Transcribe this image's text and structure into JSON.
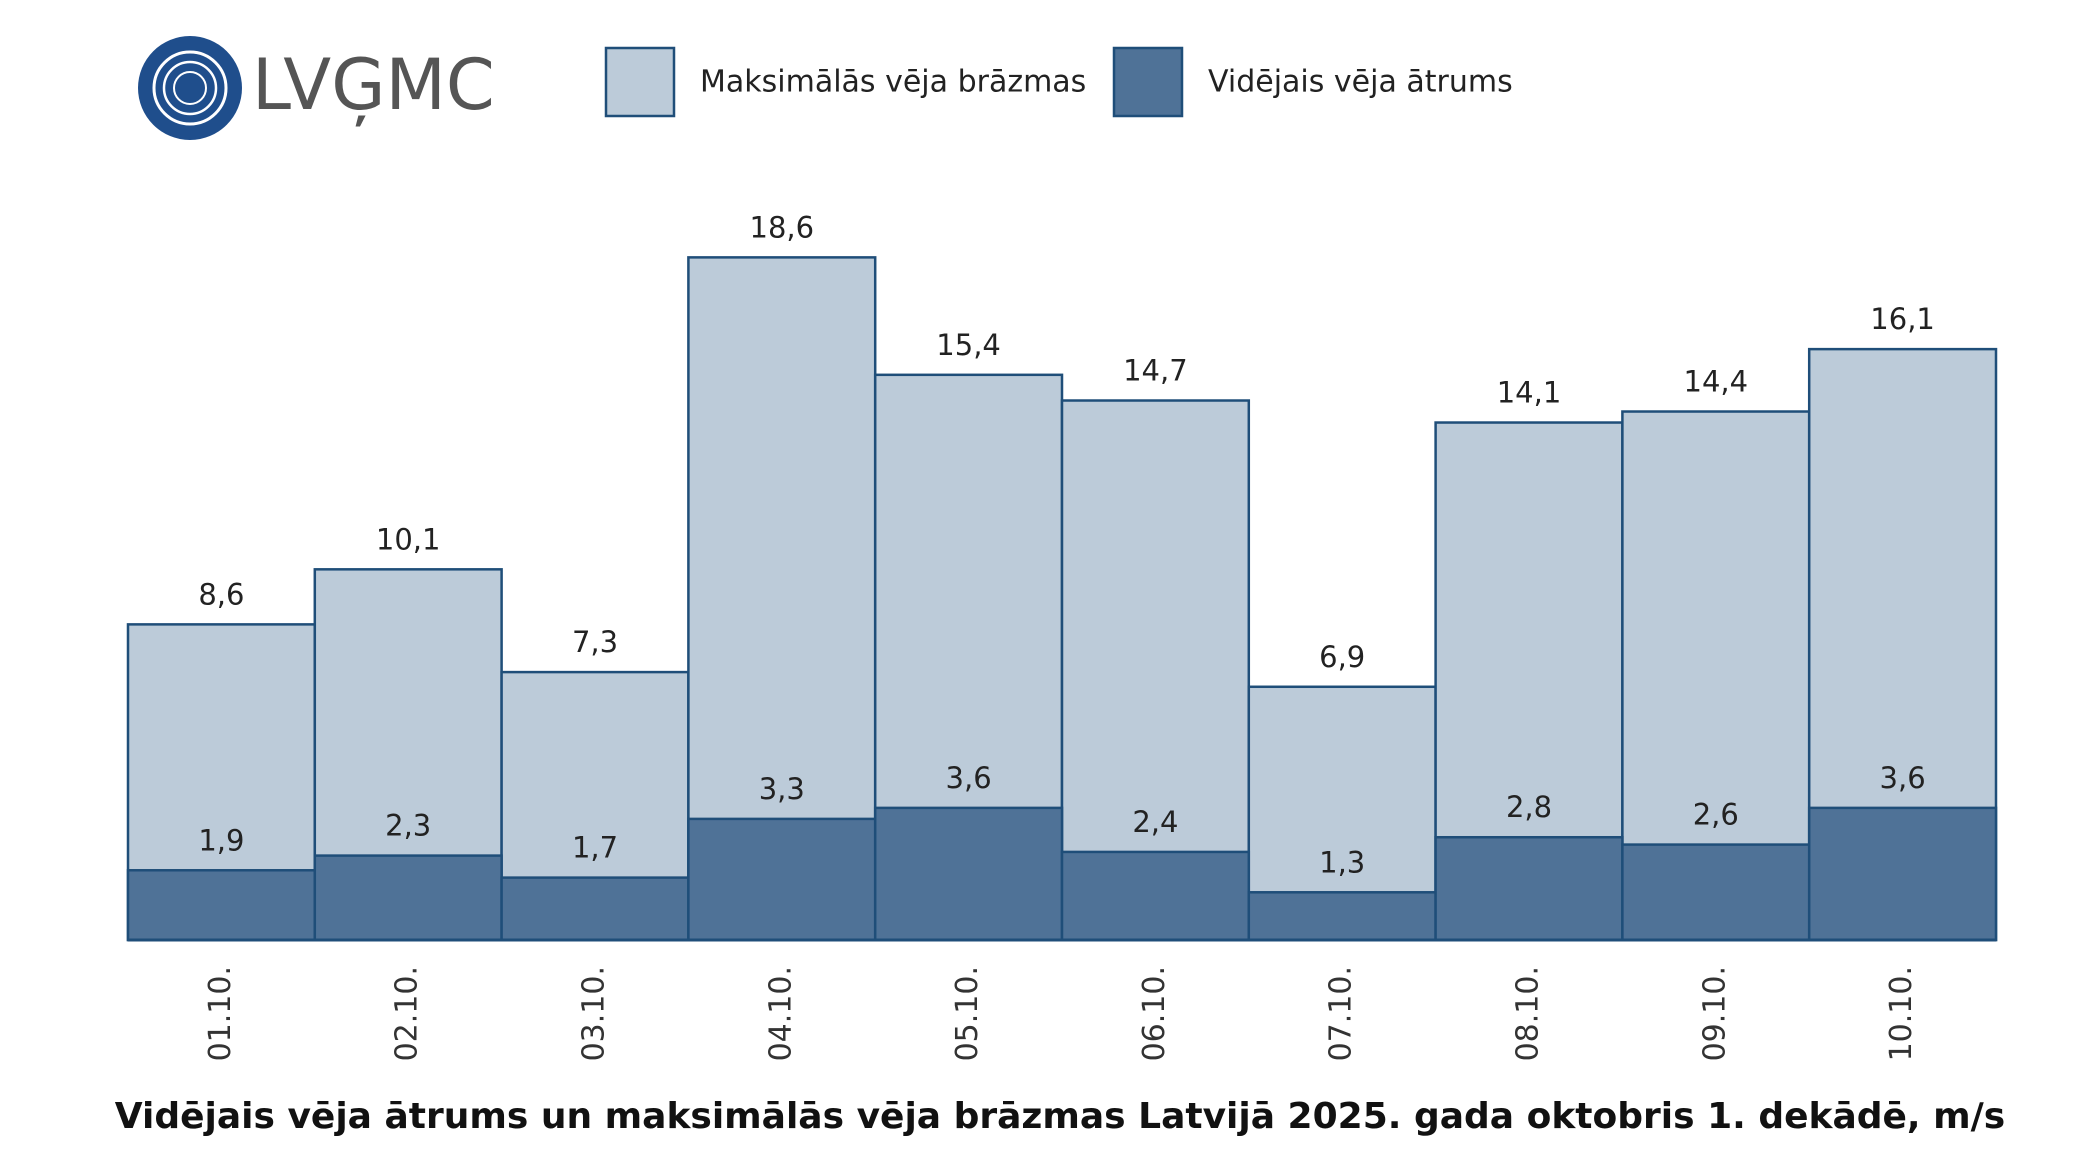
{
  "logo": "LVĢMC",
  "chart_data": {
    "type": "bar",
    "title": "Vidējais vēja ātrums un maksimālās vēja brāzmas Latvijā 2025. gada oktobris 1. dekādē, m/s",
    "categories": [
      "01.10.",
      "02.10.",
      "03.10.",
      "04.10.",
      "05.10.",
      "06.10.",
      "07.10.",
      "08.10.",
      "09.10.",
      "10.10."
    ],
    "series": [
      {
        "name": "Maksimālās vēja brāzmas",
        "color": "#bccbd9",
        "stroke": "#1f4e79",
        "values": [
          8.6,
          10.1,
          7.3,
          18.6,
          15.4,
          14.7,
          6.9,
          14.1,
          14.4,
          16.1
        ],
        "value_labels": [
          "8,6",
          "10,1",
          "7,3",
          "18,6",
          "15,4",
          "14,7",
          "6,9",
          "14,1",
          "14,4",
          "16,1"
        ]
      },
      {
        "name": "Vidējais vēja ātrums",
        "color": "#4f7297",
        "stroke": "#1f4e79",
        "values": [
          1.9,
          2.3,
          1.7,
          3.3,
          3.6,
          2.4,
          1.3,
          2.8,
          2.6,
          3.6
        ],
        "value_labels": [
          "1,9",
          "2,3",
          "1,7",
          "3,3",
          "3,6",
          "2,4",
          "1,3",
          "2,8",
          "2,6",
          "3,6"
        ]
      }
    ]
  }
}
